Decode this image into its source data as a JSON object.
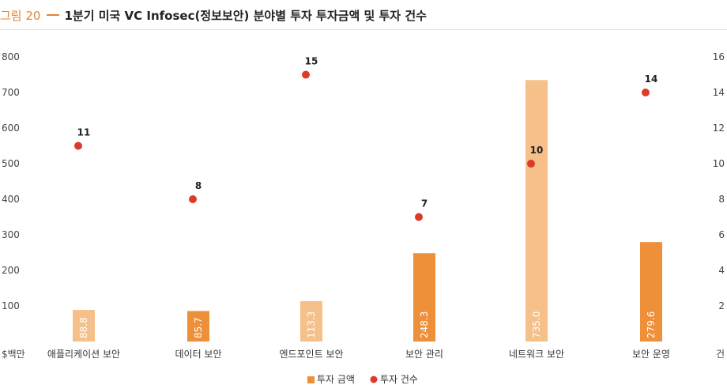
{
  "figure": {
    "label": "그림 20",
    "title": "1분기 미국 VC Infosec(정보보안) 분야별 투자 투자금액 및 투자 건수"
  },
  "chart_data": {
    "type": "bar",
    "categories": [
      "애플리케이션 보안",
      "데이터 보안",
      "엔드포인트 보안",
      "보안 관리",
      "네트워크 보안",
      "보안 운영"
    ],
    "series": [
      {
        "name": "투자 금액",
        "type": "bar",
        "axis": "left",
        "values": [
          88.8,
          85.7,
          113.3,
          248.3,
          735.0,
          279.6
        ],
        "value_labels": [
          "88.8",
          "85.7",
          "113.3",
          "248.3",
          "735.0",
          "279.6"
        ]
      },
      {
        "name": "투자 건수",
        "type": "scatter",
        "axis": "right",
        "values": [
          11,
          8,
          15,
          7,
          10,
          14
        ],
        "value_labels": [
          "11",
          "8",
          "15",
          "7",
          "10",
          "14"
        ]
      }
    ],
    "y_left": {
      "unit_label": "$백만",
      "ticks": [
        "100",
        "200",
        "300",
        "400",
        "500",
        "600",
        "700",
        "800"
      ],
      "ylim": [
        0,
        800
      ]
    },
    "y_right": {
      "unit_label": "건",
      "ticks": [
        "2",
        "4",
        "6",
        "8",
        "10",
        "12",
        "14",
        "16"
      ],
      "ylim": [
        0,
        16
      ]
    },
    "colors": {
      "bar_light": "#f6c08a",
      "bar_dark": "#ee8f3a",
      "dot": "#dc3a2a"
    },
    "grid": false,
    "legend_position": "bottom-center"
  }
}
